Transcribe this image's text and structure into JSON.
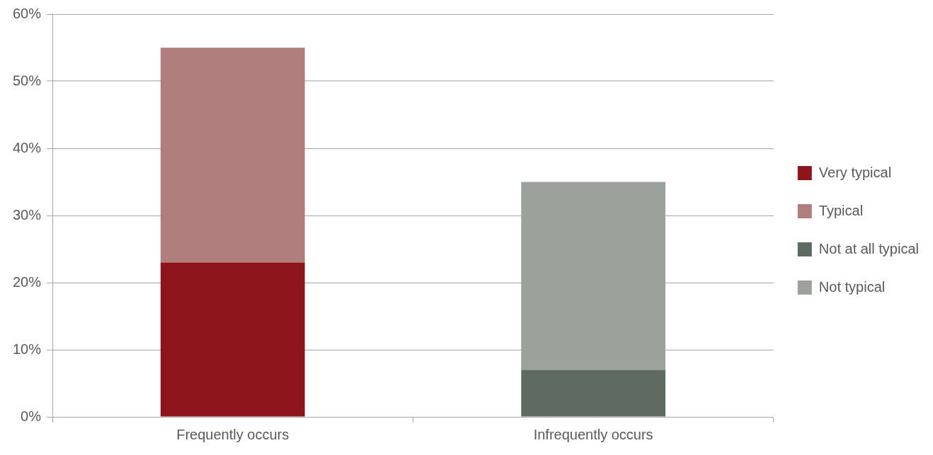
{
  "chart_data": {
    "type": "bar",
    "stacked": true,
    "categories": [
      "Frequently occurs",
      "Infrequently occurs"
    ],
    "series": [
      {
        "name": "Very typical",
        "color": "#8c161c",
        "values": [
          23,
          null
        ]
      },
      {
        "name": "Typical",
        "color": "#ae7f7d",
        "values": [
          32,
          null
        ]
      },
      {
        "name": "Not at all typical",
        "color": "#5e6b63",
        "values": [
          null,
          7
        ]
      },
      {
        "name": "Not typical",
        "color": "#9ca19e",
        "values": [
          null,
          28
        ]
      }
    ],
    "ylim": [
      0,
      60
    ],
    "yticks": [
      {
        "value": 0,
        "label": "0%"
      },
      {
        "value": 10,
        "label": "10%"
      },
      {
        "value": 20,
        "label": "20%"
      },
      {
        "value": 30,
        "label": "30%"
      },
      {
        "value": 40,
        "label": "40%"
      },
      {
        "value": 50,
        "label": "50%"
      },
      {
        "value": 60,
        "label": "60%"
      }
    ],
    "grid": "y",
    "legend": "right"
  }
}
